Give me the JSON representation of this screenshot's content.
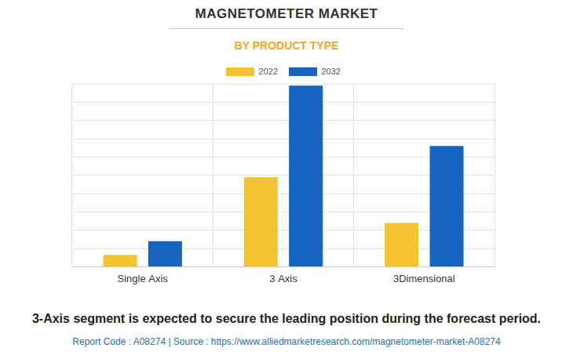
{
  "chart_data": {
    "type": "bar",
    "title": "MAGNETOMETER MARKET",
    "subtitle": "BY PRODUCT TYPE",
    "categories": [
      "Single Axis",
      "3 Axis",
      "3Dimensional"
    ],
    "series": [
      {
        "name": "2022",
        "color": "#f4c430",
        "values": [
          0.65,
          4.9,
          2.4
        ]
      },
      {
        "name": "2032",
        "color": "#1565c0",
        "values": [
          1.4,
          9.9,
          6.6
        ]
      }
    ],
    "ylim": [
      0,
      10
    ],
    "yticks": [
      0,
      1,
      2,
      3,
      4,
      5,
      6,
      7,
      8,
      9,
      10
    ],
    "grid": true,
    "legend": "top",
    "tick_labels": "x",
    "caption": "3-Axis segment is expected to secure the leading position during the forecast period.",
    "source": "Report Code : A08274  |  Source : https://www.alliedmarketresearch.com/magnetometer-market-A08274"
  }
}
